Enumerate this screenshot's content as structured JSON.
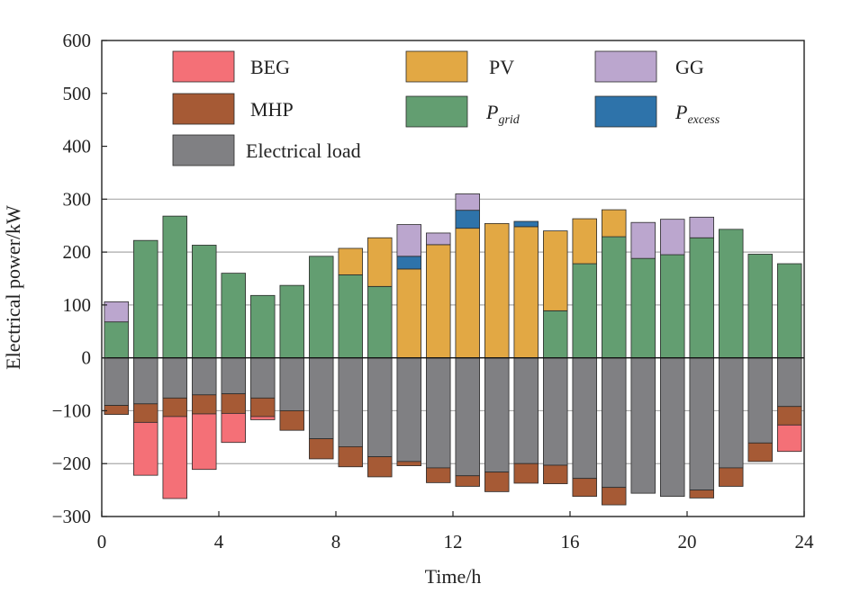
{
  "chart_data": {
    "type": "bar",
    "stacked": true,
    "title": "",
    "xlabel": "Time/h",
    "ylabel": "Electrical power/kW",
    "xlim": [
      0,
      24
    ],
    "ylim": [
      -300,
      600
    ],
    "x_ticks": [
      "0",
      "4",
      "8",
      "12",
      "16",
      "20",
      "24"
    ],
    "y_ticks": [
      "600",
      "500",
      "400",
      "300",
      "200",
      "100",
      "0",
      "−100",
      "−200",
      "−300"
    ],
    "grid": "horizontal at 100, 200, 300",
    "legend_placement": "top",
    "x": [
      1,
      2,
      3,
      4,
      5,
      6,
      7,
      8,
      9,
      10,
      11,
      12,
      13,
      14,
      15,
      16,
      17,
      18,
      19,
      20,
      21,
      22,
      23,
      24
    ],
    "series": [
      {
        "name": "Electrical load",
        "key": "load",
        "color": "#808083",
        "values": [
          -90,
          -87,
          -76,
          -70,
          -68,
          -76,
          -100,
          -153,
          -168,
          -187,
          -196,
          -208,
          -223,
          -216,
          -200,
          -203,
          -228,
          -245,
          -256,
          -262,
          -250,
          -208,
          -161,
          -92
        ]
      },
      {
        "name": "MHP",
        "key": "mhp",
        "color": "#A65A35",
        "values": [
          -17,
          -35,
          -35,
          -36,
          -37,
          -35,
          -37,
          -38,
          -38,
          -38,
          -8,
          -28,
          -20,
          -37,
          -37,
          -35,
          -34,
          -33,
          0,
          0,
          -15,
          -35,
          -35,
          -35
        ]
      },
      {
        "name": "BEG",
        "key": "beg",
        "color": "#F47077",
        "values": [
          0,
          -100,
          -155,
          -105,
          -55,
          -6,
          0,
          0,
          0,
          0,
          0,
          0,
          0,
          0,
          0,
          0,
          0,
          0,
          0,
          0,
          0,
          0,
          0,
          -50
        ]
      },
      {
        "name": "P_grid",
        "key": "grid",
        "label_main": "P",
        "label_sub": "grid",
        "color": "#639E71",
        "values": [
          68,
          222,
          268,
          213,
          160,
          118,
          137,
          192,
          157,
          135,
          0,
          0,
          0,
          0,
          0,
          89,
          178,
          229,
          188,
          195,
          227,
          243,
          196,
          178
        ]
      },
      {
        "name": "PV",
        "key": "pv",
        "color": "#E2A844",
        "values": [
          0,
          0,
          0,
          0,
          0,
          0,
          0,
          0,
          50,
          92,
          168,
          214,
          245,
          254,
          248,
          151,
          85,
          51,
          0,
          0,
          0,
          0,
          0,
          0
        ]
      },
      {
        "name": "P_excess",
        "key": "excess",
        "label_main": "P",
        "label_sub": "excess",
        "color": "#2E73AA",
        "values": [
          0,
          0,
          0,
          0,
          0,
          0,
          0,
          0,
          0,
          0,
          24,
          0,
          34,
          0,
          10,
          0,
          0,
          0,
          0,
          0,
          0,
          0,
          0,
          0
        ]
      },
      {
        "name": "GG",
        "key": "gg",
        "color": "#BBA6CE",
        "values": [
          38,
          0,
          0,
          0,
          0,
          0,
          0,
          0,
          0,
          0,
          60,
          22,
          31,
          0,
          0,
          0,
          0,
          0,
          68,
          67,
          39,
          0,
          0,
          0
        ]
      }
    ],
    "legend": [
      {
        "key": "beg",
        "label": "BEG"
      },
      {
        "key": "pv",
        "label": "PV"
      },
      {
        "key": "gg",
        "label": "GG"
      },
      {
        "key": "mhp",
        "label": "MHP"
      },
      {
        "key": "grid",
        "label": "P_grid"
      },
      {
        "key": "excess",
        "label": "P_excess"
      },
      {
        "key": "load",
        "label": "Electrical load"
      }
    ]
  }
}
